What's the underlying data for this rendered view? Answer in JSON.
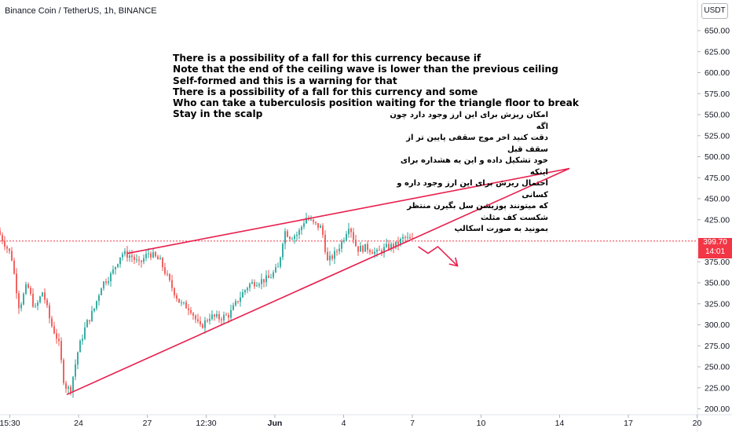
{
  "header": {
    "symbol_title": "Binance Coin / TetherUS, 1h, BINANCE",
    "currency": "USDT"
  },
  "price_label": {
    "price": "399.70",
    "countdown": "14:01"
  },
  "notes": {
    "english": [
      "There is a possibility of a fall for this currency because if",
      "Note that the end of the ceiling wave is lower than the previous ceiling",
      "Self-formed and this is a warning for that",
      "There is a possibility of a fall for this currency and some",
      "Who can take a tuberculosis position waiting for the triangle floor to break",
      "Stay in the scalp"
    ],
    "persian": [
      "امکان ریزش برای این ارز وجود دارد چون اگه",
      "دقت کنید اخر موج سقفی پایین تر از سقف قبل",
      "خود تشکیل داده و این یه هشداره برای اینکه",
      "احتمال ریزش برای این ارز وجود داره و کسانی",
      "که میتونند پوزیشن سل بگیرن منتظر شکست کف مثلث",
      "بمونید به صورت اسکالپ"
    ]
  },
  "colors": {
    "up": "#26a69a",
    "down": "#ef5350",
    "drawing": "#e91e4c",
    "last_price": "#f23645",
    "axis_text": "#131722"
  },
  "chart_data": {
    "type": "candlestick",
    "symbol": "BNBUSDT",
    "interval": "1h",
    "exchange": "BINANCE",
    "last_price": 399.7,
    "y_axis": {
      "ticks": [
        "650.00",
        "625.00",
        "600.00",
        "575.00",
        "550.00",
        "525.00",
        "500.00",
        "475.00",
        "450.00",
        "425.00",
        "375.00",
        "350.00",
        "325.00",
        "300.00",
        "275.00",
        "250.00",
        "225.00",
        "200.00"
      ],
      "range": [
        195,
        660
      ],
      "position": "right"
    },
    "x_axis": {
      "ticks": [
        "15:30",
        "24",
        "27",
        "12:30",
        "Jun",
        "4",
        "7",
        "10",
        "14",
        "17",
        "20"
      ],
      "tick_positions": [
        0.5,
        4,
        7.5,
        10.5,
        14,
        17.5,
        21,
        24.5,
        28.5,
        32,
        35.5
      ],
      "range": [
        0,
        35.8
      ]
    },
    "series_anchors": [
      {
        "t": 0.0,
        "p": 412
      },
      {
        "t": 0.4,
        "p": 395
      },
      {
        "t": 0.7,
        "p": 382
      },
      {
        "t": 1.1,
        "p": 320
      },
      {
        "t": 1.5,
        "p": 348
      },
      {
        "t": 1.9,
        "p": 318
      },
      {
        "t": 2.3,
        "p": 340
      },
      {
        "t": 2.7,
        "p": 302
      },
      {
        "t": 3.1,
        "p": 280
      },
      {
        "t": 3.4,
        "p": 228
      },
      {
        "t": 3.7,
        "p": 222
      },
      {
        "t": 4.1,
        "p": 270
      },
      {
        "t": 4.5,
        "p": 300
      },
      {
        "t": 4.9,
        "p": 318
      },
      {
        "t": 5.3,
        "p": 348
      },
      {
        "t": 5.8,
        "p": 360
      },
      {
        "t": 6.3,
        "p": 385
      },
      {
        "t": 6.8,
        "p": 382
      },
      {
        "t": 7.2,
        "p": 372
      },
      {
        "t": 7.7,
        "p": 386
      },
      {
        "t": 8.3,
        "p": 375
      },
      {
        "t": 8.8,
        "p": 348
      },
      {
        "t": 9.3,
        "p": 325
      },
      {
        "t": 9.8,
        "p": 320
      },
      {
        "t": 10.3,
        "p": 296
      },
      {
        "t": 10.8,
        "p": 310
      },
      {
        "t": 11.3,
        "p": 308
      },
      {
        "t": 11.8,
        "p": 312
      },
      {
        "t": 12.3,
        "p": 332
      },
      {
        "t": 12.8,
        "p": 348
      },
      {
        "t": 13.3,
        "p": 352
      },
      {
        "t": 13.8,
        "p": 355
      },
      {
        "t": 14.3,
        "p": 368
      },
      {
        "t": 14.6,
        "p": 412
      },
      {
        "t": 14.9,
        "p": 405
      },
      {
        "t": 15.3,
        "p": 408
      },
      {
        "t": 15.7,
        "p": 428
      },
      {
        "t": 16.1,
        "p": 420
      },
      {
        "t": 16.5,
        "p": 415
      },
      {
        "t": 16.8,
        "p": 375
      },
      {
        "t": 17.2,
        "p": 385
      },
      {
        "t": 17.6,
        "p": 402
      },
      {
        "t": 17.9,
        "p": 420
      },
      {
        "t": 18.3,
        "p": 390
      },
      {
        "t": 18.8,
        "p": 392
      },
      {
        "t": 19.3,
        "p": 385
      },
      {
        "t": 19.8,
        "p": 392
      },
      {
        "t": 20.3,
        "p": 395
      },
      {
        "t": 20.7,
        "p": 404
      },
      {
        "t": 21.1,
        "p": 399.7
      }
    ],
    "drawings": [
      {
        "type": "trendline",
        "label": "triangle-ceiling",
        "from": {
          "t": 6.5,
          "p": 385
        },
        "to": {
          "t": 29.0,
          "p": 486
        }
      },
      {
        "type": "trendline",
        "label": "triangle-floor",
        "from": {
          "t": 3.4,
          "p": 217
        },
        "to": {
          "t": 29.0,
          "p": 486
        }
      },
      {
        "type": "path-arrow",
        "label": "projected-drop",
        "points": [
          {
            "t": 21.3,
            "p": 393
          },
          {
            "t": 21.8,
            "p": 385
          },
          {
            "t": 22.3,
            "p": 393
          },
          {
            "t": 23.3,
            "p": 370
          }
        ]
      }
    ]
  }
}
